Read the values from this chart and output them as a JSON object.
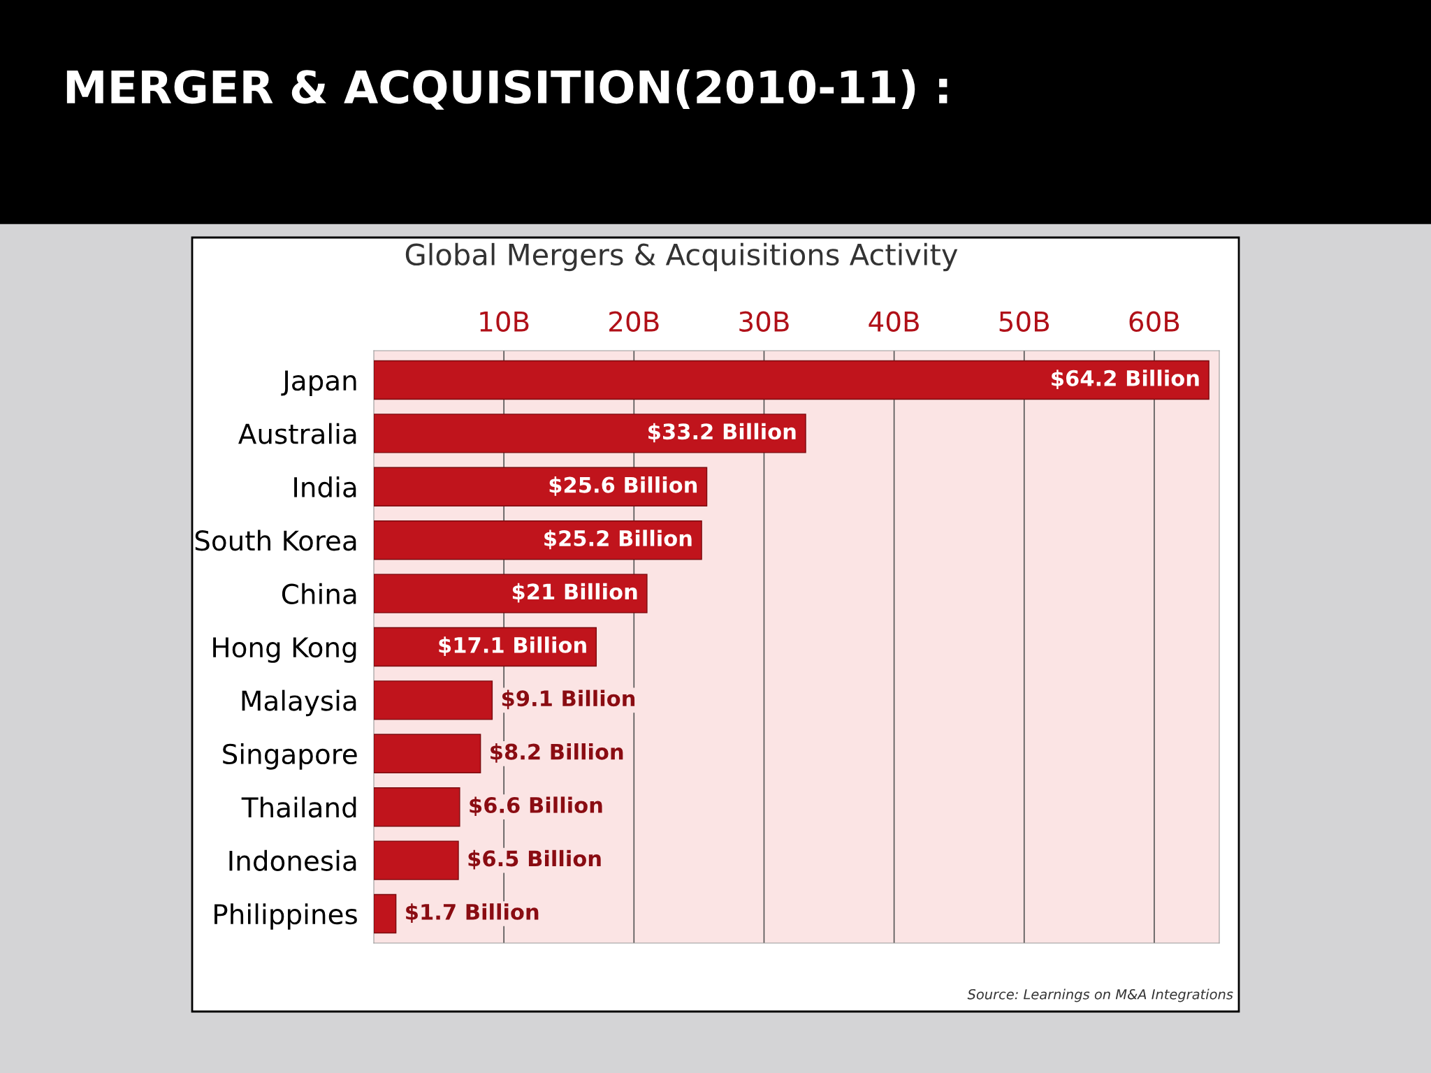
{
  "chart_data": {
    "type": "bar",
    "orientation": "horizontal",
    "title": "MERGER & ACQUISITION(2010-11) :",
    "subtitle": "Global Mergers & Acquisitions Activity",
    "categories": [
      "Japan",
      "Australia",
      "India",
      "South Korea",
      "China",
      "Hong Kong",
      "Malaysia",
      "Singapore",
      "Thailand",
      "Indonesia",
      "Philippines"
    ],
    "values": [
      64.2,
      33.2,
      25.6,
      25.2,
      21,
      17.1,
      9.1,
      8.2,
      6.6,
      6.5,
      1.7
    ],
    "value_labels": [
      "$64.2 Billion",
      "$33.2 Billion",
      "$25.6 Billion",
      "$25.2 Billion",
      "$21 Billion",
      "$17.1 Billion",
      "$9.1 Billion",
      "$8.2 Billion",
      "$6.6 Billion",
      "$6.5 Billion",
      "$1.7 Billion"
    ],
    "color": "#c0141c",
    "xlim": [
      0,
      65
    ],
    "xticks": [
      {
        "value": 10,
        "label": "10B"
      },
      {
        "value": 20,
        "label": "20B"
      },
      {
        "value": 30,
        "label": "30B"
      },
      {
        "value": 40,
        "label": "40B"
      },
      {
        "value": 50,
        "label": "50B"
      },
      {
        "value": 60,
        "label": "60B"
      }
    ],
    "grid": "x",
    "annotations": [
      "Source: Learnings on M&A Integrations"
    ]
  }
}
